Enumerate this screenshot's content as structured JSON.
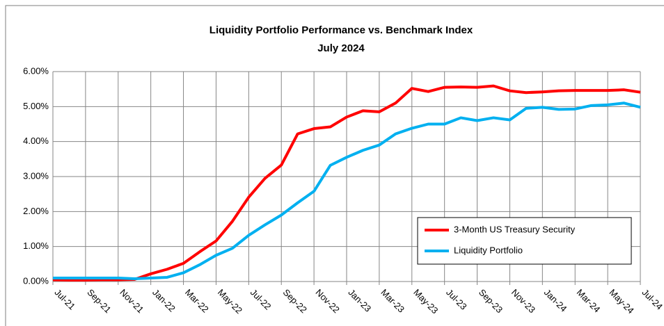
{
  "chart_data": {
    "type": "line",
    "title": "Liquidity Portfolio Performance vs. Benchmark Index",
    "subtitle": "July 2024",
    "categories": [
      "Jul-21",
      null,
      "Sep-21",
      null,
      "Nov-21",
      null,
      "Jan-22",
      null,
      "Mar-22",
      null,
      "May-22",
      null,
      "Jul-22",
      null,
      "Sep-22",
      null,
      "Nov-22",
      null,
      "Jan-23",
      null,
      "Mar-23",
      null,
      "May-23",
      null,
      "Jul-23",
      null,
      "Sep-23",
      null,
      "Nov-23",
      null,
      "Jan-24",
      null,
      "Mar-24",
      null,
      "May-24",
      null,
      "Jul-24"
    ],
    "series": [
      {
        "name": "3-Month US Treasury Security",
        "color": "#ff0000",
        "values": [
          0.05,
          0.04,
          0.04,
          0.05,
          0.05,
          0.06,
          0.22,
          0.35,
          0.52,
          0.85,
          1.16,
          1.72,
          2.41,
          2.95,
          3.33,
          4.22,
          4.37,
          4.42,
          4.7,
          4.88,
          4.85,
          5.1,
          5.52,
          5.43,
          5.55,
          5.56,
          5.55,
          5.59,
          5.45,
          5.4,
          5.42,
          5.45,
          5.46,
          5.46,
          5.46,
          5.48,
          5.41
        ]
      },
      {
        "name": "Liquidity Portfolio",
        "color": "#00b0f0",
        "values": [
          0.1,
          0.1,
          0.1,
          0.1,
          0.1,
          0.08,
          0.1,
          0.12,
          0.25,
          0.48,
          0.75,
          0.95,
          1.32,
          1.62,
          1.9,
          2.25,
          2.58,
          3.32,
          3.55,
          3.75,
          3.9,
          4.22,
          4.38,
          4.5,
          4.5,
          4.68,
          4.6,
          4.68,
          4.62,
          4.95,
          4.98,
          4.92,
          4.93,
          5.03,
          5.05,
          5.1,
          4.98
        ]
      }
    ],
    "ylim": [
      0,
      6
    ],
    "yticks": [
      {
        "value": 0,
        "label": "0.00%"
      },
      {
        "value": 1,
        "label": "1.00%"
      },
      {
        "value": 2,
        "label": "2.00%"
      },
      {
        "value": 3,
        "label": "3.00%"
      },
      {
        "value": 4,
        "label": "4.00%"
      },
      {
        "value": 5,
        "label": "5.00%"
      },
      {
        "value": 6,
        "label": "6.00%"
      }
    ],
    "grid": true,
    "legend": "lower right"
  }
}
